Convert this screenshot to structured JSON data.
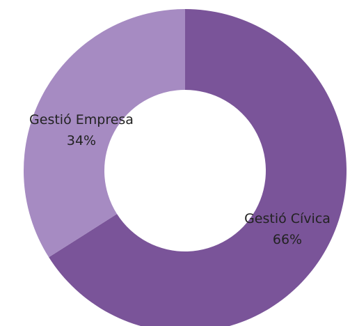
{
  "chart_data": {
    "type": "pie",
    "variant": "donut",
    "title": "",
    "slices": [
      {
        "label": "Gestió Cívica",
        "value": 66,
        "value_label": "66%",
        "color": "#7a5499"
      },
      {
        "label": "Gestió Empresa",
        "value": 34,
        "value_label": "34%",
        "color": "#a68bc2"
      }
    ],
    "legend": "none",
    "start_angle": "12 o'clock",
    "direction": "clockwise"
  }
}
